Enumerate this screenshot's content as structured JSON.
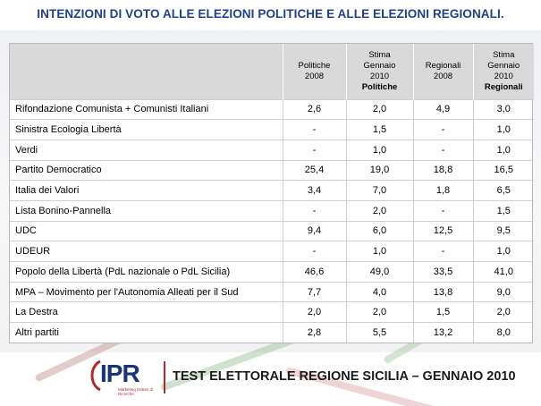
{
  "title": "INTENZIONI DI VOTO ALLE ELEZIONI POLITICHE E ALLE ELEZIONI REGIONALI.",
  "table": {
    "headers": [
      {
        "line1": "Politiche",
        "line2": "2008",
        "line3": ""
      },
      {
        "line1": "Stima",
        "line2": "Gennaio",
        "line3": "2010",
        "line4": "Politiche"
      },
      {
        "line1": "Regionali",
        "line2": "2008",
        "line3": ""
      },
      {
        "line1": "Stima",
        "line2": "Gennaio",
        "line3": "2010",
        "line4": "Regionali"
      }
    ],
    "rows": [
      {
        "party": "Rifondazione Comunista + Comunisti Italiani",
        "v": [
          "2,6",
          "2,0",
          "4,9",
          "3,0"
        ]
      },
      {
        "party": "Sinistra Ecologia Libertà",
        "v": [
          "-",
          "1,5",
          "-",
          "1,0"
        ]
      },
      {
        "party": "Verdi",
        "v": [
          "-",
          "1,0",
          "-",
          "1,0"
        ]
      },
      {
        "party": "Partito Democratico",
        "v": [
          "25,4",
          "19,0",
          "18,8",
          "16,5"
        ]
      },
      {
        "party": "Italia dei Valori",
        "v": [
          "3,4",
          "7,0",
          "1,8",
          "6,5"
        ]
      },
      {
        "party": "Lista Bonino-Pannella",
        "v": [
          "-",
          "2,0",
          "-",
          "1,5"
        ]
      },
      {
        "party": "UDC",
        "v": [
          "9,4",
          "6,0",
          "12,5",
          "9,5"
        ]
      },
      {
        "party": "UDEUR",
        "v": [
          "-",
          "1,0",
          "-",
          "1,0"
        ]
      },
      {
        "party": "Popolo della Libertà (PdL nazionale o PdL Sicilia)",
        "v": [
          "46,6",
          "49,0",
          "33,5",
          "41,0"
        ]
      },
      {
        "party": "MPA –  Movimento per l'Autonomia Alleati per il Sud",
        "v": [
          "7,7",
          "4,0",
          "13,8",
          "9,0"
        ]
      },
      {
        "party": "La Destra",
        "v": [
          "2,0",
          "2,0",
          "1,5",
          "2,0"
        ]
      },
      {
        "party": "Altri partiti",
        "v": [
          "2,8",
          "5,5",
          "13,2",
          "8,0"
        ]
      }
    ]
  },
  "footer": {
    "logo": "IPR",
    "logo_sub": "Marketing Istituto di Ricerche",
    "text": "TEST ELETTORALE REGIONE SICILIA – GENNAIO 2010"
  },
  "colors": {
    "title": "#1f3f8f",
    "logo": "#16357a",
    "accent_red": "#b22a2a",
    "header_bg": "#d9d9d9"
  }
}
